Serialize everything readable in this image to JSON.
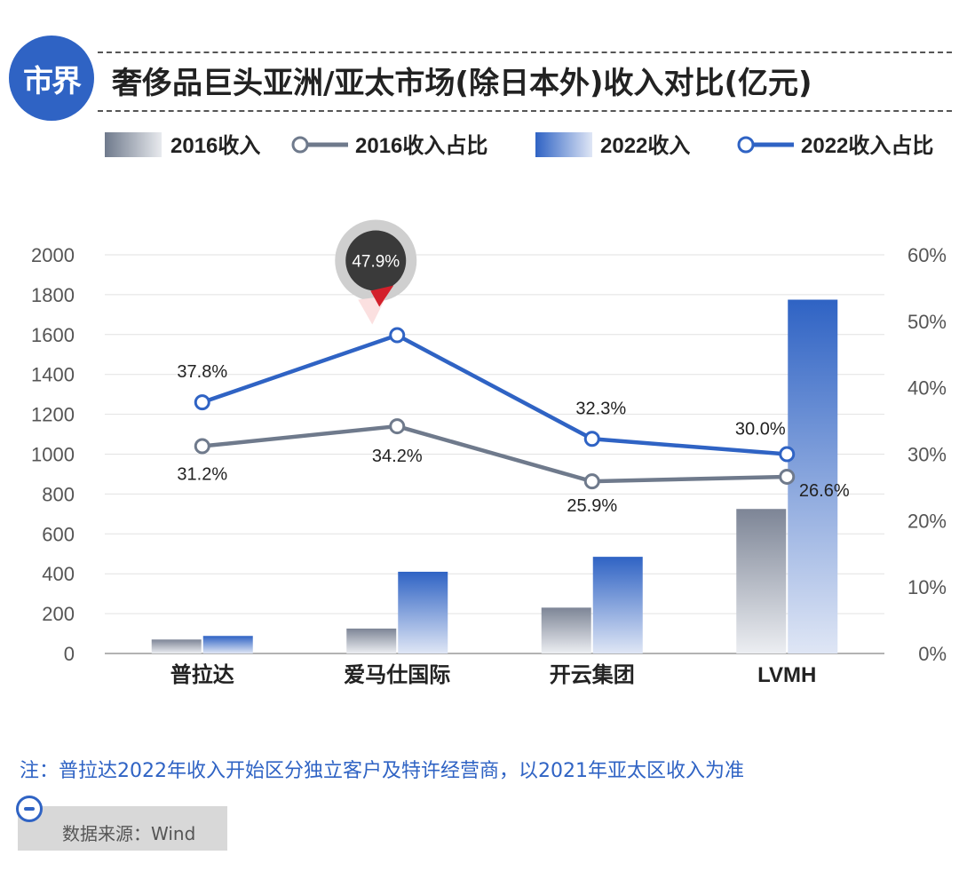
{
  "header": {
    "logo_text": "市界",
    "title": "奢侈品巨头亚洲/亚太市场(除日本外)收入对比(亿元)"
  },
  "chart_data": {
    "type": "bar",
    "categories": [
      "普拉达",
      "爱马仕国际",
      "开云集团",
      "LVMH"
    ],
    "series": [
      {
        "name": "2016收入",
        "kind": "bar",
        "axis": "left",
        "values": [
          70,
          125,
          230,
          725
        ]
      },
      {
        "name": "2022收入",
        "kind": "bar",
        "axis": "left",
        "values": [
          88,
          410,
          485,
          1775
        ]
      },
      {
        "name": "2016收入占比",
        "kind": "line",
        "axis": "right",
        "values": [
          31.2,
          34.2,
          25.9,
          26.6
        ],
        "labels": [
          "31.2%",
          "34.2%",
          "25.9%",
          "26.6%"
        ]
      },
      {
        "name": "2022收入占比",
        "kind": "line",
        "axis": "right",
        "values": [
          37.8,
          47.9,
          32.3,
          30.0
        ],
        "labels": [
          "37.8%",
          "47.9%",
          "32.3%",
          "30.0%"
        ]
      }
    ],
    "left_axis": {
      "min": 0,
      "max": 2000,
      "ticks": [
        0,
        200,
        400,
        600,
        800,
        1000,
        1200,
        1400,
        1600,
        1800,
        2000
      ]
    },
    "right_axis": {
      "min": 0,
      "max": 60,
      "ticks": [
        "0%",
        "10%",
        "20%",
        "30%",
        "40%",
        "50%",
        "60%"
      ]
    },
    "highlight": {
      "series": "2022收入占比",
      "category": "爱马仕国际",
      "label": "47.9%"
    },
    "legend": [
      "2016收入",
      "2016收入占比",
      "2022收入",
      "2022收入占比"
    ],
    "colors": {
      "bar2016": "#7d8596",
      "bar2022": "#2f63c4",
      "line2016": "#6f7a8c",
      "line2022": "#2f63c4"
    }
  },
  "footer": {
    "note": "注：普拉达2022年收入开始区分独立客户及特许经营商，以2021年亚太区收入为准",
    "source": "数据来源：Wind"
  }
}
